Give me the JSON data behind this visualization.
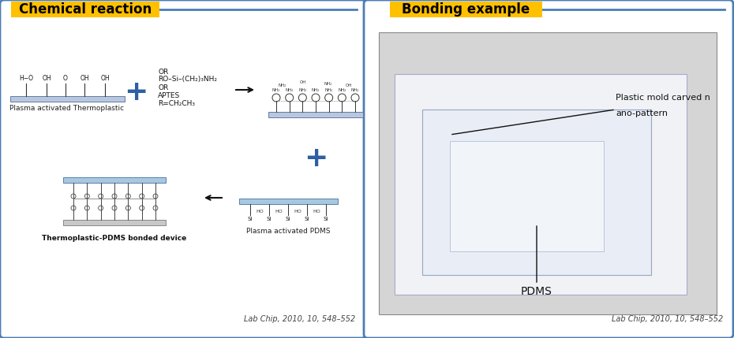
{
  "left_title": "Chemical reaction",
  "right_title": "Bonding example",
  "title_bg_color": "#FFC000",
  "title_text_color": "#000000",
  "box_border_color": "#4A7DB5",
  "box_bg_color": "#FFFFFF",
  "citation": "Lab Chip, 2010, 10, 548–552",
  "left_elements": {
    "thermoplastic_label": "Plasma activated Thermoplastic",
    "aptes_line1": "OR",
    "aptes_line2": "RO–Si–(CH₂)₃NH₂",
    "aptes_line3": "OR",
    "aptes_line4": "APTES",
    "aptes_line5": "R=CH₂CH₃",
    "plus_color": "#2E5FA3",
    "bonded_label": "Thermoplastic-PDMS bonded device",
    "pdms_label": "Plasma activated PDMS"
  },
  "right_elements": {
    "plastic_label_line1": "Plastic mold carved n",
    "plastic_label_line2": "ano-pattern",
    "pdms_label": "PDMS"
  },
  "layout": {
    "fig_width": 9.3,
    "fig_height": 4.29,
    "dpi": 100
  }
}
